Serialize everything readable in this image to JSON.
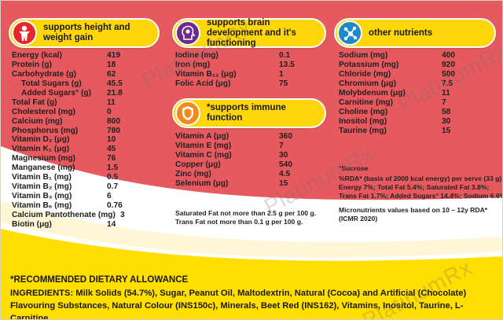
{
  "headers": {
    "growth": "supports height and weight gain",
    "brain": "supports brain development and it's functioning",
    "other": "other nutrients",
    "immune": "*supports immune function"
  },
  "icons": {
    "growth": "child-figure-icon",
    "brain": "brain-head-icon",
    "other": "molecule-icon",
    "immune": "shield-icon"
  },
  "colors": {
    "background_red": "#e65a5f",
    "band_white": "#ffffff",
    "band_yellow": "#ffde00",
    "header_yellow": "#ffd60a",
    "icon_red": "#e6262e",
    "icon_purple": "#6b2a8c",
    "icon_blue": "#1e88c8",
    "icon_orange": "#f28a1e"
  },
  "col1": [
    {
      "name": "Energy (kcal)",
      "value": "419"
    },
    {
      "name": "Protein (g)",
      "value": "18"
    },
    {
      "name": "Carbohydrate (g)",
      "value": "62"
    },
    {
      "name": "Total Sugars (g)",
      "value": "45.5",
      "indent": true
    },
    {
      "name": "Added Sugars° (g)",
      "value": "21.8",
      "indent": true
    },
    {
      "name": "Total Fat (g)",
      "value": "11"
    },
    {
      "name": "Cholesterol (mg)",
      "value": "0"
    },
    {
      "name": "Calcium (mg)",
      "value": "800"
    },
    {
      "name": "Phosphorus (mg)",
      "value": "780"
    },
    {
      "name": "Vitamin D₂ (μg)",
      "value": "10"
    },
    {
      "name": "Vitamin K₁ (μg)",
      "value": "45"
    },
    {
      "name": "Magnesium (mg)",
      "value": "76"
    },
    {
      "name": "Manganese (mg)",
      "value": "1.5"
    },
    {
      "name": "Vitamin B₁ (mg)",
      "value": "0.5"
    },
    {
      "name": "Vitamin B₂ (mg)",
      "value": "0.7"
    },
    {
      "name": "Vitamin B₃ (mg)",
      "value": "6"
    },
    {
      "name": "Vitamin B₆ (mg)",
      "value": "0.76"
    },
    {
      "name": "Calcium Pantothenate (mg)",
      "value": "3"
    },
    {
      "name": "Biotin (μg)",
      "value": "14"
    }
  ],
  "col2": [
    {
      "name": "Iodine (mg)",
      "value": "0.1"
    },
    {
      "name": "Iron (mg)",
      "value": "13.5"
    },
    {
      "name": "Vitamin B₁₂ (μg)",
      "value": "1"
    },
    {
      "name": "Folic Acid (μg)",
      "value": "75"
    }
  ],
  "col2b": [
    {
      "name": "Vitamin A (μg)",
      "value": "360"
    },
    {
      "name": "Vitamin E (mg)",
      "value": "7"
    },
    {
      "name": "Vitamin C (mg)",
      "value": "30"
    },
    {
      "name": "Copper (μg)",
      "value": "540"
    },
    {
      "name": "Zinc (mg)",
      "value": "4.5"
    },
    {
      "name": "Selenium (μg)",
      "value": "15"
    }
  ],
  "col3": [
    {
      "name": "Sodium (mg)",
      "value": "400"
    },
    {
      "name": "Potassium (mg)",
      "value": "920"
    },
    {
      "name": "Chloride (mg)",
      "value": "500"
    },
    {
      "name": "Chromium (μg)",
      "value": "7.5"
    },
    {
      "name": "Molybdenum (μg)",
      "value": "11"
    },
    {
      "name": "Carnitine (mg)",
      "value": "7"
    },
    {
      "name": "Choline (mg)",
      "value": "58"
    },
    {
      "name": "Inositol (mg)",
      "value": "30"
    },
    {
      "name": "Taurine (mg)",
      "value": "15"
    }
  ],
  "notes": {
    "fat_line1": "Saturated Fat not more than 2.5 g per 100 g.",
    "fat_line2": "Trans Fat not more than 0.1 g per 100 g.",
    "sucrose": "°Sucrose",
    "rda_line1": "%RDA* (basis of 2000 kcal energy) per serve (33 g):",
    "rda_line2": "Energy 7%; Total Fat 5.4%; Saturated Fat 3.8%;",
    "rda_line3": "Trans Fat 1.7%; Added Sugars° 14.4%; Sodium 6.6%.",
    "micro_line1": "Micronutrients values based on 10 – 12y RDA*",
    "micro_line2": "(ICMR 2020)"
  },
  "footer": {
    "rda_title": "*RECOMMENDED DIETARY ALLOWANCE",
    "ingredients": "INGREDIENTS: Milk Solids (54.7%), Sugar, Peanut Oil, Maltodextrin, Natural (Cocoa) and Artificial (Chocolate) Flavouring Substances, Natural Colour (INS150c), Minerals, Beet Red (INS162), Vitamins, Inositol, Taurine, L-Carnitine."
  },
  "watermark": "PlatinumRx"
}
